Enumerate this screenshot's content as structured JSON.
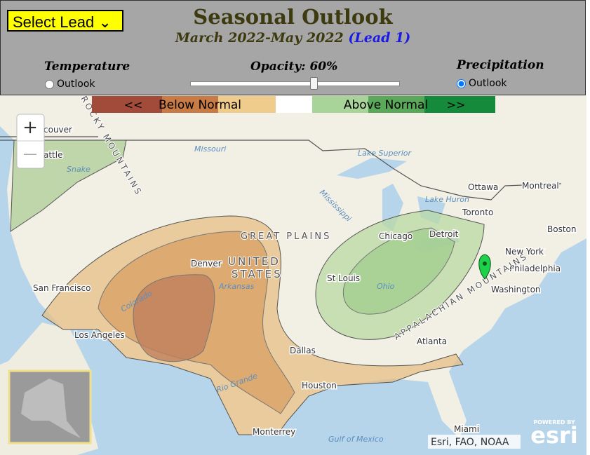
{
  "header": {
    "lead_select": "Select Lead",
    "title": "Seasonal Outlook",
    "period": "March 2022-May 2022",
    "lead": "(Lead 1)"
  },
  "controls": {
    "temperature": {
      "label": "Temperature",
      "option": "Outlook",
      "checked": false
    },
    "opacity": "Opacity: 60%",
    "precipitation": {
      "label": "Precipitation",
      "option": "Outlook",
      "checked": true
    }
  },
  "legend": {
    "left_arrow": "<<",
    "below": "Below Normal",
    "above": "Above Normal",
    "right_arrow": ">>"
  },
  "map": {
    "zoom_in": "+",
    "zoom_out": "—",
    "labels": [
      "couver",
      "attle",
      "San Francisco",
      "Los Angeles",
      "Denver",
      "UNITED",
      "STATES",
      "GREAT PLAINS",
      "Dallas",
      "Houston",
      "Monterrey",
      "St Louis",
      "Chicago",
      "Detroit",
      "Toronto",
      "Ottawa",
      "Montreal",
      "Boston",
      "New York",
      "Philadelphia",
      "Washington",
      "Atlanta",
      "Miami"
    ],
    "water_labels": [
      "Lake Superior",
      "Lake Huron",
      "Missouri",
      "Mississippi",
      "Arkansas",
      "Ohio",
      "Rio Grande",
      "Colorado",
      "Gulf of Mexico",
      "Snake"
    ],
    "mountains": [
      "APPALACHIAN MOUNTAINS",
      "ROCKY MOUNTAINS"
    ],
    "attribution": "Esri, FAO, NOAA",
    "logo_top": "POWERED BY",
    "logo": "esri"
  }
}
